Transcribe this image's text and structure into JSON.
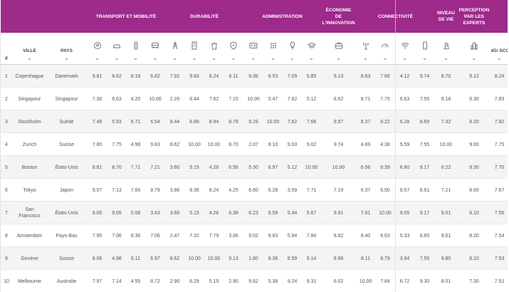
{
  "colors": {
    "header_bg": "#9e2a8a",
    "header_text": "#ffffff",
    "row_alt": "#f4f4f4",
    "text": "#555555"
  },
  "groups": [
    {
      "key": "transport",
      "label": "Transport et mobilité"
    },
    {
      "key": "durabilite",
      "label": "Durabilité"
    },
    {
      "key": "admin",
      "label": "Administration"
    },
    {
      "key": "eco",
      "label": "Économie de l'innovation"
    },
    {
      "key": "connect",
      "label": "Connectivité"
    },
    {
      "key": "niveau",
      "label": "Niveau de vie"
    },
    {
      "key": "perception",
      "label": "Perception par les experts"
    }
  ],
  "columns": {
    "rank": "#",
    "ville": "Ville",
    "pays": "Pays",
    "score": "Rang/ Score",
    "icons": [
      "parking-icon",
      "car-icon",
      "traffic-light-icon",
      "bus-icon",
      "energy-tower-icon",
      "building-icon",
      "trash-bin-icon",
      "shield-leaf-icon",
      "id-card-icon",
      "grid-dots-icon",
      "lightbulb-icon",
      "graduation-cap-icon",
      "briefcase-icon",
      "antenna-icon",
      "speedometer-icon",
      "wifi-icon",
      "mobile-phone-icon",
      "rocking-horse-icon",
      "city-skyline-icon"
    ]
  },
  "rows": [
    {
      "rank": "1",
      "ville": "Copenhague",
      "pays": "Danemark",
      "values": [
        "9.81",
        "8.62",
        "8.18",
        "6.82",
        "7.92",
        "9.83",
        "8.24",
        "6.11",
        "9.38",
        "8.53",
        "7.09",
        "5.85",
        "9.13",
        "8.63",
        "7.66",
        "4.12",
        "9.74",
        "8.70",
        "9.12",
        "8.24"
      ]
    },
    {
      "rank": "2",
      "ville": "Singapour",
      "pays": "Singapour",
      "values": [
        "7.30",
        "6.63",
        "4.20",
        "10.00",
        "2.26",
        "8.44",
        "7.62",
        "7.15",
        "10.00",
        "5.47",
        "7.82",
        "5.12",
        "8.62",
        "8.71",
        "7.75",
        "6.63",
        "7.55",
        "8.18",
        "9.30",
        "7.83"
      ]
    },
    {
      "rank": "3",
      "ville": "Stockholm",
      "pays": "Suède",
      "values": [
        "7.49",
        "5.93",
        "6.71",
        "6.54",
        "8.44",
        "6.88",
        "8.94",
        "8.79",
        "9.29",
        "10.00",
        "7.62",
        "7.66",
        "9.57",
        "8.37",
        "9.22",
        "6.28",
        "8.69",
        "7.32",
        "8.20",
        "7.82"
      ]
    },
    {
      "rank": "4",
      "ville": "Zurich",
      "pays": "Suisse",
      "values": [
        "7.80",
        "7.75",
        "4.98",
        "9.83",
        "8.62",
        "10.00",
        "10.00",
        "8.70",
        "2.07",
        "8.10",
        "9.03",
        "9.02",
        "9.74",
        "4.69",
        "4.38",
        "5.59",
        "7.55",
        "10.00",
        "9.00",
        "7.75"
      ]
    },
    {
      "rank": "5",
      "ville": "Boston",
      "pays": "États-Unis",
      "values": [
        "8.81",
        "8.70",
        "7.71",
        "7.21",
        "3.60",
        "5.15",
        "4.26",
        "6.56",
        "5.30",
        "6.97",
        "5.12",
        "10.00",
        "10.00",
        "6.06",
        "9.39",
        "6.80",
        "9.17",
        "8.22",
        "9.30",
        "7.70"
      ]
    },
    {
      "rank": "6",
      "ville": "Tokyo",
      "pays": "Japon",
      "values": [
        "9.57",
        "7.13",
        "7.66",
        "8.79",
        "3.86",
        "8.36",
        "8.24",
        "4.25",
        "6.60",
        "6.28",
        "3.59",
        "7.71",
        "7.19",
        "6.37",
        "6.50",
        "9.57",
        "8.61",
        "7.21",
        "8.60",
        "7.67"
      ]
    },
    {
      "rank": "7",
      "ville": "San Francisco",
      "pays": "États-Unis",
      "values": [
        "9.05",
        "9.05",
        "5.08",
        "3.43",
        "3.60",
        "5.15",
        "4.26",
        "6.38",
        "6.23",
        "6.59",
        "5.44",
        "5.67",
        "9.91",
        "7.91",
        "10.00",
        "9.05",
        "9.17",
        "9.01",
        "9.10",
        "7.55"
      ]
    },
    {
      "rank": "8",
      "ville": "Amsterdam",
      "pays": "Pays-Bas",
      "values": [
        "7.95",
        "7.06",
        "8.36",
        "7.06",
        "2.47",
        "7.32",
        "7.79",
        "3.86",
        "9.02",
        "9.83",
        "5.94",
        "7.84",
        "8.82",
        "8.40",
        "6.63",
        "5.33",
        "6.85",
        "9.01",
        "8.20",
        "7.54"
      ]
    },
    {
      "rank": "9",
      "ville": "Genève",
      "pays": "Suisse",
      "values": [
        "8.06",
        "4.98",
        "6.11",
        "6.97",
        "8.62",
        "10.00",
        "10.00",
        "9.13",
        "1.80",
        "8.36",
        "8.59",
        "9.14",
        "8.96",
        "8.11",
        "8.79",
        "3.94",
        "7.55",
        "9.80",
        "8.10",
        "7.53"
      ]
    },
    {
      "rank": "10",
      "ville": "Melbourne",
      "pays": "Australie",
      "values": [
        "7.97",
        "7.14",
        "4.55",
        "8.72",
        "2.90",
        "6.29",
        "5.15",
        "2.90",
        "9.82",
        "5.38",
        "9.24",
        "9.31",
        "6.02",
        "10.00",
        "7.84",
        "6.72",
        "9.30",
        "8.01",
        "7.30",
        "7.51"
      ]
    }
  ]
}
